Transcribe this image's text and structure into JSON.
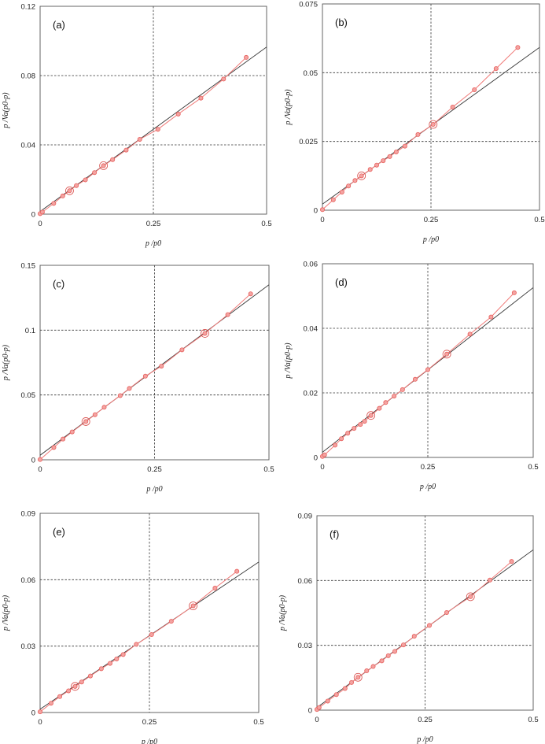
{
  "chart_data": [
    {
      "type": "scatter",
      "label": "(a)",
      "xlabel": "p /p0",
      "ylabel": "p /Va(p0-p)",
      "xlim": [
        0,
        0.5
      ],
      "ylim": [
        0,
        0.12
      ],
      "xticks": [
        "0",
        "0.25",
        "0.5"
      ],
      "yticks": [
        "0",
        "0.04",
        "0.08",
        "0.12"
      ],
      "fit_line": {
        "intercept": 0.0015,
        "slope": 0.19
      },
      "highlighted_x": [
        0.065,
        0.14
      ],
      "x": [
        0,
        0.005,
        0.03,
        0.05,
        0.065,
        0.08,
        0.1,
        0.12,
        0.14,
        0.16,
        0.19,
        0.22,
        0.26,
        0.305,
        0.355,
        0.405,
        0.455
      ],
      "y": [
        0.0003,
        0.0012,
        0.0062,
        0.0105,
        0.0135,
        0.0165,
        0.0198,
        0.024,
        0.028,
        0.0315,
        0.037,
        0.0432,
        0.049,
        0.0578,
        0.067,
        0.078,
        0.0905
      ]
    },
    {
      "type": "scatter",
      "label": "(b)",
      "xlabel": "p /p0",
      "ylabel": "p /Va(p0-p)",
      "xlim": [
        0,
        0.5
      ],
      "ylim": [
        0,
        0.075
      ],
      "xticks": [
        "0",
        "0.25",
        "0.5"
      ],
      "yticks": [
        "0",
        "0.025",
        "0.05",
        "0.075"
      ],
      "fit_line": {
        "intercept": 0.0022,
        "slope": 0.114
      },
      "highlighted_x": [
        0.09,
        0.255
      ],
      "x": [
        0,
        0.025,
        0.045,
        0.06,
        0.075,
        0.09,
        0.11,
        0.125,
        0.14,
        0.155,
        0.17,
        0.19,
        0.22,
        0.255,
        0.3,
        0.35,
        0.4,
        0.45
      ],
      "y": [
        0.0002,
        0.0038,
        0.0066,
        0.0088,
        0.0108,
        0.0125,
        0.0148,
        0.0164,
        0.018,
        0.0195,
        0.0212,
        0.0233,
        0.0275,
        0.0312,
        0.0375,
        0.0438,
        0.0515,
        0.0592
      ]
    },
    {
      "type": "scatter",
      "label": "(c)",
      "xlabel": "p /p0",
      "ylabel": "p /Va(p0-p)",
      "xlim": [
        0,
        0.5
      ],
      "ylim": [
        0,
        0.15
      ],
      "xticks": [
        "0",
        "0.25",
        "0.5"
      ],
      "yticks": [
        "0",
        "0.05",
        "0.1",
        "0.15"
      ],
      "fit_line": {
        "intercept": 0.0035,
        "slope": 0.263
      },
      "highlighted_x": [
        0.1,
        0.36
      ],
      "x": [
        0,
        0.03,
        0.05,
        0.07,
        0.1,
        0.12,
        0.14,
        0.175,
        0.195,
        0.23,
        0.265,
        0.31,
        0.36,
        0.41,
        0.46
      ],
      "y": [
        0.0002,
        0.0095,
        0.016,
        0.0215,
        0.0295,
        0.0348,
        0.0405,
        0.0495,
        0.055,
        0.0645,
        0.0722,
        0.0848,
        0.0975,
        0.112,
        0.128
      ]
    },
    {
      "type": "scatter",
      "label": "(d)",
      "xlabel": "p /p0",
      "ylabel": "p /Va(p0-p)",
      "xlim": [
        0,
        0.5
      ],
      "ylim": [
        0,
        0.06
      ],
      "xticks": [
        "0",
        "0.25",
        "0.5"
      ],
      "yticks": [
        "0",
        "0.02",
        "0.04",
        "0.06"
      ],
      "fit_line": {
        "intercept": 0.0016,
        "slope": 0.102
      },
      "highlighted_x": [
        0.115,
        0.295
      ],
      "x": [
        0,
        0.005,
        0.03,
        0.045,
        0.06,
        0.075,
        0.09,
        0.1,
        0.115,
        0.135,
        0.15,
        0.17,
        0.19,
        0.22,
        0.25,
        0.295,
        0.35,
        0.4,
        0.455
      ],
      "y": [
        0.0003,
        0.0008,
        0.0038,
        0.0058,
        0.0075,
        0.009,
        0.0102,
        0.0112,
        0.013,
        0.0152,
        0.017,
        0.019,
        0.021,
        0.0242,
        0.0272,
        0.032,
        0.0382,
        0.0435,
        0.051
      ]
    },
    {
      "type": "scatter",
      "label": "(e)",
      "xlabel": "p /p0",
      "ylabel": "p /Va(p0-p)",
      "xlim": [
        0,
        0.5
      ],
      "ylim": [
        0,
        0.09
      ],
      "xticks": [
        "0",
        "0.25",
        "0.5"
      ],
      "yticks": [
        "0",
        "0.03",
        "0.06",
        "0.09"
      ],
      "fit_line": {
        "intercept": 0.0015,
        "slope": 0.133
      },
      "highlighted_x": [
        0.08,
        0.35
      ],
      "x": [
        0,
        0.025,
        0.045,
        0.065,
        0.08,
        0.095,
        0.115,
        0.14,
        0.16,
        0.175,
        0.19,
        0.22,
        0.255,
        0.3,
        0.35,
        0.4,
        0.45
      ],
      "y": [
        0.0003,
        0.0042,
        0.0072,
        0.0098,
        0.0118,
        0.0138,
        0.0165,
        0.0198,
        0.0222,
        0.0242,
        0.0262,
        0.0308,
        0.0352,
        0.0412,
        0.0482,
        0.0562,
        0.0638
      ]
    },
    {
      "type": "scatter",
      "label": "(f)",
      "xlabel": "p /p0",
      "ylabel": "p /Va(p0-p)",
      "xlim": [
        0,
        0.5
      ],
      "ylim": [
        0,
        0.09
      ],
      "xticks": [
        "0",
        "0.25",
        "0.5"
      ],
      "yticks": [
        "0",
        "0.03",
        "0.06",
        "0.09"
      ],
      "fit_line": {
        "intercept": 0.0012,
        "slope": 0.146
      },
      "highlighted_x": [
        0.095,
        0.355
      ],
      "x": [
        0,
        0.005,
        0.025,
        0.045,
        0.065,
        0.08,
        0.095,
        0.115,
        0.13,
        0.15,
        0.165,
        0.18,
        0.2,
        0.225,
        0.26,
        0.3,
        0.355,
        0.4,
        0.45
      ],
      "y": [
        0.0003,
        0.0012,
        0.0042,
        0.0072,
        0.01,
        0.0128,
        0.0152,
        0.0182,
        0.0202,
        0.0228,
        0.0252,
        0.0272,
        0.0302,
        0.0342,
        0.0392,
        0.0452,
        0.0525,
        0.0602,
        0.0688
      ]
    }
  ]
}
